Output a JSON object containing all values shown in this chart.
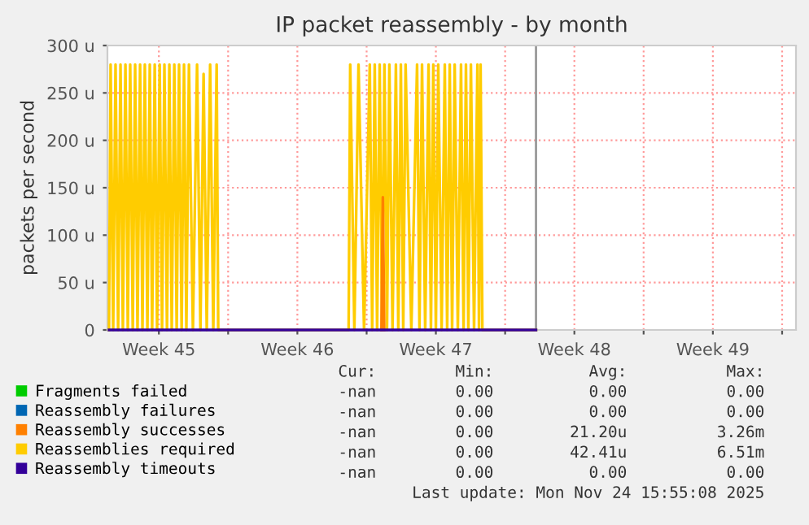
{
  "chart_data": {
    "type": "line",
    "title": "IP packet reassembly - by month",
    "ylabel": "packets per second",
    "xlim": [
      "2025-11-03T00:00",
      "2025-12-07T19:12"
    ],
    "ylim": [
      0,
      300
    ],
    "xticks": [
      {
        "value": "2025-11-05T14:24",
        "label": "Week 45"
      },
      {
        "value": "2025-11-09T02:24",
        "label": null
      },
      {
        "value": "2025-11-12T14:24",
        "label": "Week 46"
      },
      {
        "value": "2025-11-16T02:24",
        "label": null
      },
      {
        "value": "2025-11-19T14:24",
        "label": "Week 47"
      },
      {
        "value": "2025-11-23T02:24",
        "label": null
      },
      {
        "value": "2025-11-26T14:24",
        "label": "Week 48"
      },
      {
        "value": "2025-11-30T02:24",
        "label": null
      },
      {
        "value": "2025-12-03T14:24",
        "label": "Week 49"
      },
      {
        "value": "2025-12-07T02:24",
        "label": null
      }
    ],
    "yticks": [
      0,
      {
        "value": 50,
        "label": "50 u"
      },
      {
        "value": 100,
        "label": "100 u"
      },
      {
        "value": 150,
        "label": "150 u"
      },
      {
        "value": 200,
        "label": "200 u"
      },
      {
        "value": 250,
        "label": "250 u"
      },
      {
        "value": 300,
        "label": "300 u"
      }
    ],
    "grid": true,
    "legend": "bottom",
    "marker": "none",
    "line_style": "solid",
    "ref_lines": [
      {
        "axis": "x",
        "value": "2025-11-24T15:50",
        "label": null,
        "color": "#999999"
      }
    ],
    "series": [
      {
        "name": "Fragments failed",
        "color": "#00cc00"
      },
      {
        "name": "Reassembly failures",
        "color": "#0066b3"
      },
      {
        "name": "Reassembly successes",
        "color": "#ff8000",
        "x": [
          "2025-11-16T20:24",
          "2025-11-16T22:05",
          "2025-11-16T23:46"
        ],
        "values": [
          0,
          140,
          0
        ]
      },
      {
        "name": "Reassemblies required",
        "color": "#ffcc00",
        "x": [
          "2025-11-03T01:55",
          "2025-11-03T03:50",
          "2025-11-03T06:58",
          "2025-11-03T09:50",
          "2025-11-03T12:58",
          "2025-11-03T15:50",
          "2025-11-03T18:43",
          "2025-11-03T21:50",
          "2025-11-04T00:43",
          "2025-11-04T03:36",
          "2025-11-04T06:43",
          "2025-11-04T09:36",
          "2025-11-04T12:29",
          "2025-11-04T15:36",
          "2025-11-04T18:29",
          "2025-11-04T21:22",
          "2025-11-05T00:29",
          "2025-11-05T03:22",
          "2025-11-05T06:14",
          "2025-11-05T09:22",
          "2025-11-05T12:14",
          "2025-11-05T15:22",
          "2025-11-05T18:14",
          "2025-11-05T21:07",
          "2025-11-06T00:14",
          "2025-11-06T03:07",
          "2025-11-06T06:00",
          "2025-11-06T09:07",
          "2025-11-06T12:00",
          "2025-11-06T14:53",
          "2025-11-06T18:00",
          "2025-11-06T20:53",
          "2025-11-06T23:46",
          "2025-11-07T02:53",
          "2025-11-07T07:41",
          "2025-11-07T12:43",
          "2025-11-07T16:48",
          "2025-11-07T20:38",
          "2025-11-08T00:29",
          "2025-11-08T04:34",
          "2025-11-08T08:24",
          "2025-11-08T12:29",
          "2025-11-08T14:24",
          "2025-11-15T04:34",
          "2025-11-15T06:29",
          "2025-11-15T11:31",
          "2025-11-15T16:34",
          "2025-11-15T23:17",
          "2025-11-16T06:14",
          "2025-11-16T09:07",
          "2025-11-16T12:14",
          "2025-11-16T15:07",
          "2025-11-16T18:14",
          "2025-11-16T21:07",
          "2025-11-17T00:00",
          "2025-11-17T03:07",
          "2025-11-17T06:00",
          "2025-11-17T09:50",
          "2025-11-17T13:55",
          "2025-11-17T16:48",
          "2025-11-17T19:55",
          "2025-11-17T22:48",
          "2025-11-18T01:41",
          "2025-11-18T08:38",
          "2025-11-18T15:36",
          "2025-11-18T18:29",
          "2025-11-18T21:36",
          "2025-11-19T01:26",
          "2025-11-19T05:31",
          "2025-11-19T08:24",
          "2025-11-19T11:17",
          "2025-11-19T14:24",
          "2025-11-19T17:17",
          "2025-11-19T21:22",
          "2025-11-20T01:12",
          "2025-11-20T04:05",
          "2025-11-20T07:12",
          "2025-11-20T10:05",
          "2025-11-20T13:12",
          "2025-11-20T17:02",
          "2025-11-20T20:53",
          "2025-11-21T00:00",
          "2025-11-21T02:53",
          "2025-11-21T05:46",
          "2025-11-21T08:53",
          "2025-11-21T12:43",
          "2025-11-21T16:48",
          "2025-11-21T18:43",
          "2025-11-21T20:38",
          "2025-11-21T22:48",
          "2025-11-24T15:50"
        ],
        "values": [
          0,
          280,
          0,
          280,
          0,
          280,
          0,
          280,
          0,
          280,
          0,
          280,
          0,
          280,
          0,
          280,
          0,
          280,
          0,
          280,
          0,
          280,
          0,
          280,
          0,
          280,
          0,
          280,
          0,
          280,
          0,
          280,
          0,
          280,
          0,
          280,
          0,
          270,
          0,
          280,
          0,
          280,
          0,
          0,
          280,
          0,
          280,
          0,
          280,
          0,
          280,
          0,
          280,
          0,
          280,
          0,
          280,
          0,
          280,
          0,
          280,
          0,
          280,
          0,
          280,
          0,
          280,
          0,
          280,
          0,
          280,
          0,
          280,
          0,
          280,
          0,
          280,
          0,
          280,
          0,
          280,
          0,
          280,
          0,
          280,
          0,
          280,
          0,
          280,
          0,
          0
        ]
      },
      {
        "name": "Reassembly timeouts",
        "color": "#330099",
        "x": [
          "2025-11-03T01:55",
          "2025-11-24T15:50"
        ],
        "values": [
          0,
          0
        ]
      }
    ],
    "annotations": [
      "Cur:",
      "Min:",
      "Avg:",
      "Max:",
      "-nan",
      "0.00",
      "0.00",
      "0.00",
      "-nan",
      "0.00",
      "0.00",
      "0.00",
      "-nan",
      "0.00",
      "21.20u",
      "3.26m",
      "-nan",
      "0.00",
      "42.41u",
      "6.51m",
      "-nan",
      "0.00",
      "0.00",
      "0.00",
      "Last update: Mon Nov 24 15:55:08 2025"
    ]
  }
}
